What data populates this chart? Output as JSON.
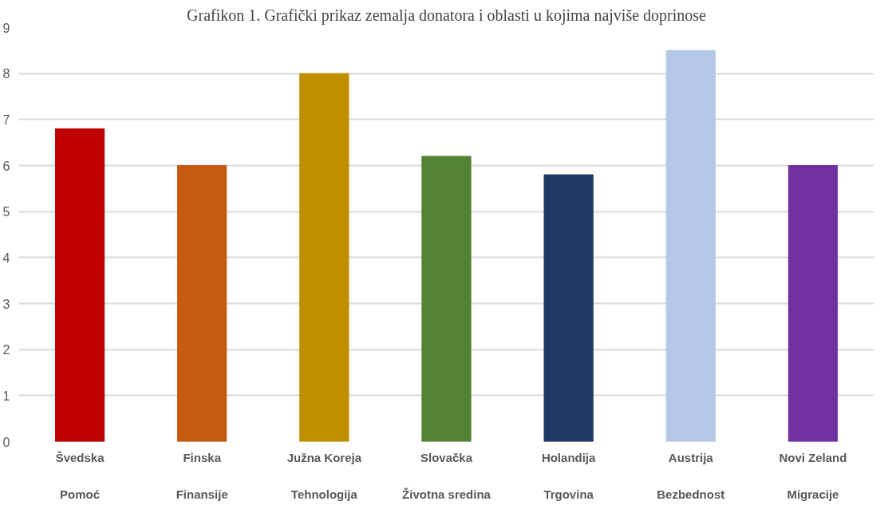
{
  "chart_data": {
    "type": "bar",
    "title": "Grafikon 1. Grafički prikaz zemalja donatora i oblasti u kojima najviše doprinose",
    "categories": [
      "Švedska",
      "Finska",
      "Južna Koreja",
      "Slovačka",
      "Holandija",
      "Austrija",
      "Novi Zeland"
    ],
    "values": [
      6.8,
      6.0,
      8.0,
      6.2,
      5.8,
      8.5,
      6.0
    ],
    "colors": [
      "#c00000",
      "#c55a11",
      "#bf8f00",
      "#548235",
      "#1f3864",
      "#b4c7e7",
      "#7030a0"
    ],
    "annotations": [
      "Pomoć",
      "Finansije",
      "Tehnologija",
      "Životna sredina",
      "Trgovina",
      "Bezbednost",
      "Migracije"
    ],
    "ylim": [
      0,
      9
    ],
    "yticks": [
      0,
      1,
      2,
      3,
      4,
      5,
      6,
      7,
      8,
      9
    ],
    "grid": "y"
  }
}
